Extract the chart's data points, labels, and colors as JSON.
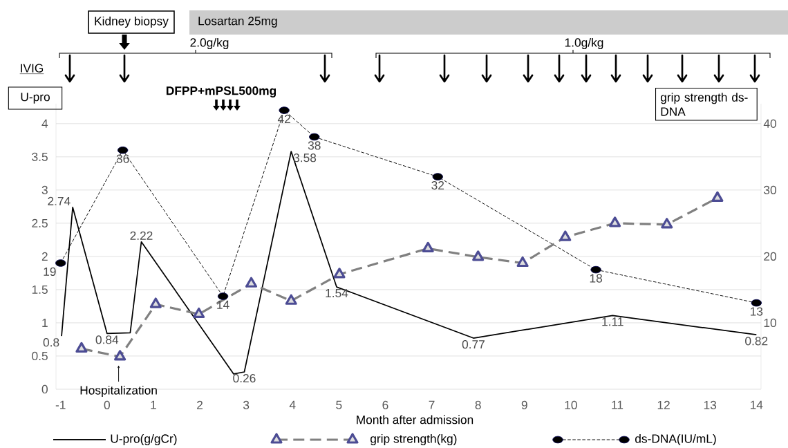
{
  "chart_data": {
    "type": "line",
    "xlabel": "Month after admission",
    "ylabel": "U-pro",
    "y2label": "grip strength ds-DNA",
    "xlim": [
      -1.1,
      14.1
    ],
    "xticks": [
      -1,
      0,
      1,
      2,
      3,
      4,
      5,
      6,
      7,
      8,
      9,
      10,
      11,
      12,
      13,
      14
    ],
    "ylim": [
      0,
      4.3
    ],
    "yticks": [
      0,
      0.5,
      1,
      1.5,
      2,
      2.5,
      3,
      3.5,
      4
    ],
    "y2lim": [
      0,
      43
    ],
    "y2ticks": [
      10,
      20,
      30,
      40
    ],
    "grid": "y",
    "legend": "bottom",
    "series": [
      {
        "name": "U-pro(g/gCr)",
        "color": "#000000",
        "line_style": "solid",
        "marker": "none",
        "x": [
          -0.98,
          -0.74,
          0,
          0.5,
          0.74,
          2.73,
          2.96,
          3.97,
          4.95,
          7.9,
          10.9,
          14
        ],
        "values": [
          0.8,
          2.74,
          0.84,
          0.85,
          2.22,
          0.23,
          0.26,
          3.58,
          1.54,
          0.77,
          1.11,
          0.82
        ],
        "value_labels": [
          "0.8",
          "2.74",
          "0.84",
          null,
          "2.22",
          null,
          "0.26",
          "3.58",
          "1.54",
          "0.77",
          "1.11",
          "0.82"
        ]
      },
      {
        "name": "grip strength(kg)",
        "axis": "y2",
        "color": "#808080",
        "line_style": "dashed",
        "marker": "triangle",
        "x": [
          -0.55,
          0.28,
          1.05,
          1.98,
          3.11,
          3.97,
          5.01,
          6.92,
          8.0,
          8.96,
          9.88,
          10.95,
          12.07,
          13.16
        ],
        "values": [
          6.1,
          4.9,
          12.8,
          11.3,
          15.9,
          13.3,
          17.3,
          21.2,
          19.9,
          19,
          22.9,
          25,
          24.8,
          28.8
        ]
      },
      {
        "name": "ds-DNA(IU/mL)",
        "axis": "y2",
        "color": "#000000",
        "line_style": "dashed",
        "marker": "circle",
        "x": [
          -1,
          0.34,
          2.5,
          3.82,
          4.47,
          7.13,
          10.54,
          14
        ],
        "values": [
          19,
          36,
          14,
          42,
          38,
          32,
          18,
          13
        ],
        "value_labels": [
          "19",
          "36",
          "14",
          "42",
          "38",
          "32",
          "18",
          "13"
        ]
      }
    ],
    "annotations": [
      "Kidney biopsy",
      "Losartan 25mg",
      "IVIG",
      "2.0g/kg",
      "1.0g/kg",
      "DFPP+mPSL500mg",
      {
        "text": "Hospitalization",
        "x": 0.25
      }
    ]
  }
}
